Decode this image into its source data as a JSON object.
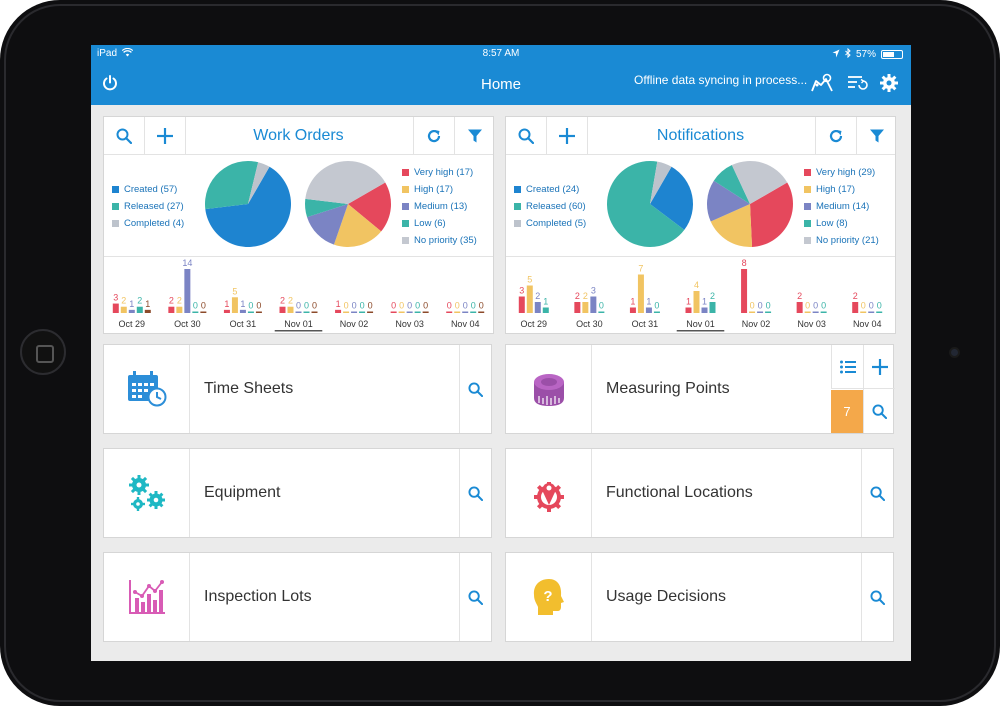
{
  "status_bar": {
    "device": "iPad",
    "time": "8:57 AM",
    "battery": "57%"
  },
  "app_bar": {
    "title": "Home",
    "sync_status": "Offline data syncing in process..."
  },
  "colors": {
    "brand": "#1a8ad4",
    "created": "#1e84d0",
    "released": "#3bb4a8",
    "completed": "#bdc3cc",
    "very_high": "#e5485c",
    "high": "#f1c462",
    "medium": "#7b84c4",
    "low": "#3bb4a8",
    "no_priority": "#c4c8d0",
    "badge": "#f4a84a"
  },
  "work_orders": {
    "title": "Work Orders",
    "status_legend": [
      {
        "label": "Created (57)",
        "value": 57,
        "color": "#1e84d0"
      },
      {
        "label": "Released (27)",
        "value": 27,
        "color": "#3bb4a8"
      },
      {
        "label": "Completed (4)",
        "value": 4,
        "color": "#bdc3cc"
      }
    ],
    "priority_legend": [
      {
        "label": "Very high (17)",
        "value": 17,
        "color": "#e5485c"
      },
      {
        "label": "High (17)",
        "value": 17,
        "color": "#f1c462"
      },
      {
        "label": "Medium (13)",
        "value": 13,
        "color": "#7b84c4"
      },
      {
        "label": "Low (6)",
        "value": 6,
        "color": "#3bb4a8"
      },
      {
        "label": "No priority (35)",
        "value": 35,
        "color": "#c4c8d0"
      }
    ]
  },
  "notifications": {
    "title": "Notifications",
    "status_legend": [
      {
        "label": "Created (24)",
        "value": 24,
        "color": "#1e84d0"
      },
      {
        "label": "Released (60)",
        "value": 60,
        "color": "#3bb4a8"
      },
      {
        "label": "Completed (5)",
        "value": 5,
        "color": "#bdc3cc"
      }
    ],
    "priority_legend": [
      {
        "label": "Very high (29)",
        "value": 29,
        "color": "#e5485c"
      },
      {
        "label": "High (17)",
        "value": 17,
        "color": "#f1c462"
      },
      {
        "label": "Medium (14)",
        "value": 14,
        "color": "#7b84c4"
      },
      {
        "label": "Low (8)",
        "value": 8,
        "color": "#3bb4a8"
      },
      {
        "label": "No priority (21)",
        "value": 21,
        "color": "#c4c8d0"
      }
    ]
  },
  "chart_data": [
    {
      "type": "bar",
      "chart": "work-orders-by-day",
      "categories": [
        "Oct 29",
        "Oct 30",
        "Oct 31",
        "Nov 01",
        "Nov 02",
        "Nov 03",
        "Nov 04"
      ],
      "selected_category": "Nov 01",
      "series": [
        {
          "color": "#e5485c",
          "values": [
            3,
            2,
            1,
            2,
            1,
            0,
            0
          ]
        },
        {
          "color": "#f1c462",
          "values": [
            2,
            2,
            5,
            2,
            0,
            0,
            0
          ]
        },
        {
          "color": "#7b84c4",
          "values": [
            1,
            14,
            1,
            0,
            0,
            0,
            0
          ]
        },
        {
          "color": "#3bb4a8",
          "values": [
            2,
            0,
            0,
            0,
            0,
            0,
            0
          ]
        },
        {
          "color": "#8c4a2a",
          "values": [
            1,
            0,
            0,
            0,
            0,
            0,
            0
          ]
        }
      ]
    },
    {
      "type": "bar",
      "chart": "notifications-by-day",
      "categories": [
        "Oct 29",
        "Oct 30",
        "Oct 31",
        "Nov 01",
        "Nov 02",
        "Nov 03",
        "Nov 04"
      ],
      "selected_category": "Nov 01",
      "series": [
        {
          "color": "#e5485c",
          "values": [
            3,
            2,
            1,
            1,
            8,
            2,
            2
          ]
        },
        {
          "color": "#f1c462",
          "values": [
            5,
            2,
            7,
            4,
            0,
            0,
            0
          ]
        },
        {
          "color": "#7b84c4",
          "values": [
            2,
            3,
            1,
            1,
            0,
            0,
            0
          ]
        },
        {
          "color": "#3bb4a8",
          "values": [
            1,
            0,
            0,
            2,
            0,
            0,
            0
          ]
        }
      ]
    }
  ],
  "tiles": {
    "time_sheets": "Time Sheets",
    "measuring_points": "Measuring Points",
    "measuring_points_count": "7",
    "equipment": "Equipment",
    "functional_locations": "Functional Locations",
    "inspection_lots": "Inspection Lots",
    "usage_decisions": "Usage Decisions"
  }
}
